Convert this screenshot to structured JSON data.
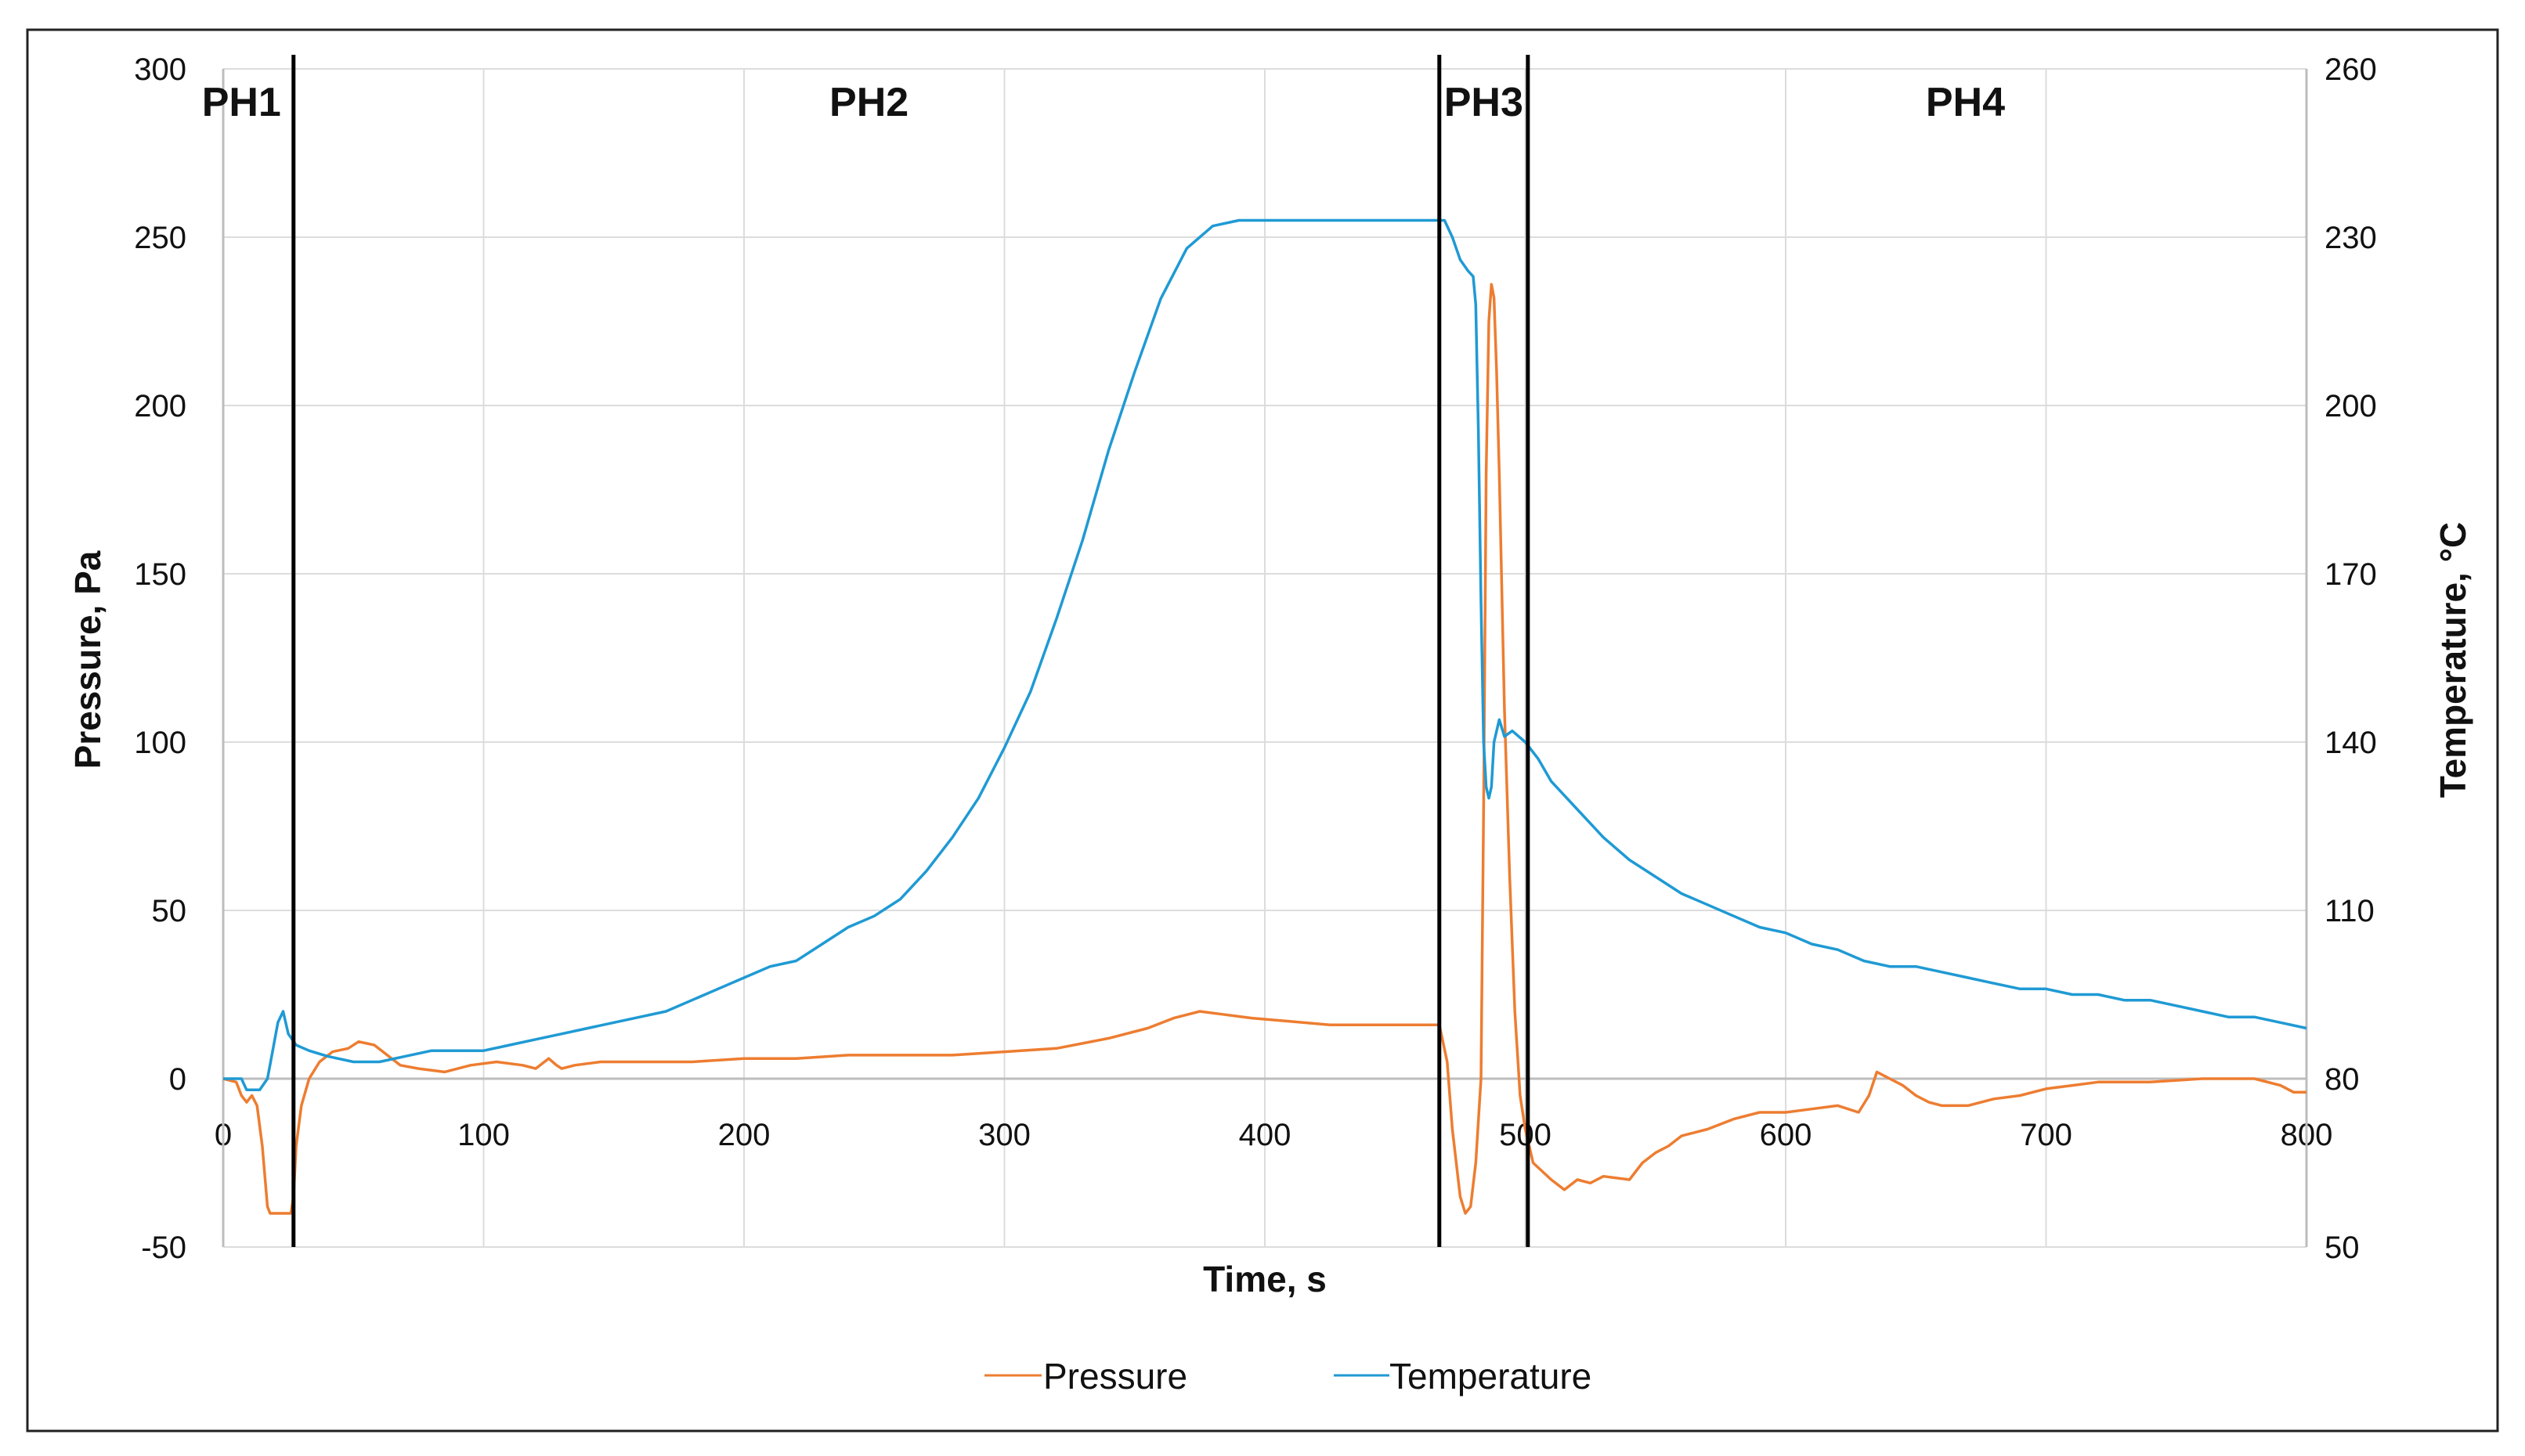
{
  "chart_data": {
    "type": "line",
    "xlabel": "Time, s",
    "ylabel": "Pressure, Pa",
    "y2label": "Temperature, °C",
    "xlim": [
      0,
      800
    ],
    "ylim": [
      -50,
      300
    ],
    "y2lim": [
      50,
      260
    ],
    "x_ticks": [
      "0",
      "100",
      "200",
      "300",
      "400",
      "500",
      "600",
      "700",
      "800"
    ],
    "y_ticks": [
      "-50",
      "0",
      "50",
      "100",
      "150",
      "200",
      "250",
      "300"
    ],
    "y2_ticks": [
      "50",
      "80",
      "110",
      "140",
      "170",
      "200",
      "230",
      "260"
    ],
    "grid": true,
    "legend_position": "bottom",
    "phase_dividers": [
      27,
      467,
      501
    ],
    "phases": [
      {
        "label": "PH1",
        "x": 7
      },
      {
        "label": "PH2",
        "x": 248
      },
      {
        "label": "PH3",
        "x": 484
      },
      {
        "label": "PH4",
        "x": 669
      }
    ],
    "series": [
      {
        "name": "Pressure",
        "axis": "left",
        "color": "#ED7D31",
        "points": [
          [
            0,
            0
          ],
          [
            5,
            -1
          ],
          [
            7,
            -5
          ],
          [
            9,
            -7
          ],
          [
            11,
            -5
          ],
          [
            13,
            -8
          ],
          [
            15,
            -20
          ],
          [
            17,
            -38
          ],
          [
            18,
            -40
          ],
          [
            22,
            -40
          ],
          [
            26,
            -40
          ],
          [
            27,
            -35
          ],
          [
            28,
            -20
          ],
          [
            30,
            -8
          ],
          [
            33,
            0
          ],
          [
            37,
            5
          ],
          [
            42,
            8
          ],
          [
            48,
            9
          ],
          [
            52,
            11
          ],
          [
            58,
            10
          ],
          [
            63,
            7
          ],
          [
            68,
            4
          ],
          [
            75,
            3
          ],
          [
            85,
            2
          ],
          [
            95,
            4
          ],
          [
            105,
            5
          ],
          [
            115,
            4
          ],
          [
            120,
            3
          ],
          [
            125,
            6
          ],
          [
            128,
            4
          ],
          [
            130,
            3
          ],
          [
            135,
            4
          ],
          [
            145,
            5
          ],
          [
            160,
            5
          ],
          [
            180,
            5
          ],
          [
            200,
            6
          ],
          [
            220,
            6
          ],
          [
            240,
            7
          ],
          [
            260,
            7
          ],
          [
            280,
            7
          ],
          [
            300,
            8
          ],
          [
            320,
            9
          ],
          [
            340,
            12
          ],
          [
            355,
            15
          ],
          [
            365,
            18
          ],
          [
            375,
            20
          ],
          [
            385,
            19
          ],
          [
            395,
            18
          ],
          [
            410,
            17
          ],
          [
            425,
            16
          ],
          [
            440,
            16
          ],
          [
            455,
            16
          ],
          [
            467,
            16
          ],
          [
            470,
            5
          ],
          [
            472,
            -15
          ],
          [
            475,
            -35
          ],
          [
            477,
            -40
          ],
          [
            479,
            -38
          ],
          [
            481,
            -25
          ],
          [
            483,
            0
          ],
          [
            484,
            80
          ],
          [
            485,
            180
          ],
          [
            486,
            225
          ],
          [
            487,
            236
          ],
          [
            488,
            232
          ],
          [
            489,
            210
          ],
          [
            490,
            180
          ],
          [
            491,
            145
          ],
          [
            492,
            110
          ],
          [
            494,
            60
          ],
          [
            496,
            20
          ],
          [
            498,
            -5
          ],
          [
            500,
            -15
          ],
          [
            503,
            -25
          ],
          [
            510,
            -30
          ],
          [
            515,
            -33
          ],
          [
            520,
            -30
          ],
          [
            525,
            -31
          ],
          [
            530,
            -29
          ],
          [
            540,
            -30
          ],
          [
            545,
            -25
          ],
          [
            550,
            -22
          ],
          [
            555,
            -20
          ],
          [
            560,
            -17
          ],
          [
            570,
            -15
          ],
          [
            580,
            -12
          ],
          [
            590,
            -10
          ],
          [
            600,
            -10
          ],
          [
            610,
            -9
          ],
          [
            620,
            -8
          ],
          [
            628,
            -10
          ],
          [
            632,
            -5
          ],
          [
            635,
            2
          ],
          [
            640,
            0
          ],
          [
            645,
            -2
          ],
          [
            650,
            -5
          ],
          [
            655,
            -7
          ],
          [
            660,
            -8
          ],
          [
            670,
            -8
          ],
          [
            680,
            -6
          ],
          [
            690,
            -5
          ],
          [
            700,
            -3
          ],
          [
            710,
            -2
          ],
          [
            720,
            -1
          ],
          [
            740,
            -1
          ],
          [
            760,
            0
          ],
          [
            780,
            0
          ],
          [
            790,
            -2
          ],
          [
            795,
            -4
          ],
          [
            800,
            -4
          ]
        ]
      },
      {
        "name": "Temperature",
        "axis": "right",
        "color": "#1F9AD4",
        "points": [
          [
            0,
            80
          ],
          [
            5,
            80
          ],
          [
            7,
            80
          ],
          [
            9,
            78
          ],
          [
            11,
            78
          ],
          [
            14,
            78
          ],
          [
            17,
            80
          ],
          [
            19,
            85
          ],
          [
            21,
            90
          ],
          [
            23,
            92
          ],
          [
            25,
            88
          ],
          [
            28,
            86
          ],
          [
            33,
            85
          ],
          [
            40,
            84
          ],
          [
            50,
            83
          ],
          [
            60,
            83
          ],
          [
            70,
            84
          ],
          [
            80,
            85
          ],
          [
            90,
            85
          ],
          [
            100,
            85
          ],
          [
            110,
            86
          ],
          [
            120,
            87
          ],
          [
            130,
            88
          ],
          [
            140,
            89
          ],
          [
            150,
            90
          ],
          [
            160,
            91
          ],
          [
            170,
            92
          ],
          [
            180,
            94
          ],
          [
            190,
            96
          ],
          [
            200,
            98
          ],
          [
            210,
            100
          ],
          [
            220,
            101
          ],
          [
            230,
            104
          ],
          [
            240,
            107
          ],
          [
            250,
            109
          ],
          [
            260,
            112
          ],
          [
            270,
            117
          ],
          [
            280,
            123
          ],
          [
            290,
            130
          ],
          [
            300,
            139
          ],
          [
            310,
            149
          ],
          [
            320,
            162
          ],
          [
            330,
            176
          ],
          [
            340,
            192
          ],
          [
            350,
            206
          ],
          [
            360,
            219
          ],
          [
            370,
            228
          ],
          [
            380,
            232
          ],
          [
            390,
            233
          ],
          [
            400,
            233
          ],
          [
            420,
            233
          ],
          [
            440,
            233
          ],
          [
            460,
            233
          ],
          [
            466,
            233
          ],
          [
            469,
            233
          ],
          [
            472,
            230
          ],
          [
            475,
            226
          ],
          [
            478,
            224
          ],
          [
            480,
            223
          ],
          [
            481,
            218
          ],
          [
            482,
            195
          ],
          [
            483,
            165
          ],
          [
            484,
            140
          ],
          [
            485,
            132
          ],
          [
            486,
            130
          ],
          [
            487,
            132
          ],
          [
            488,
            140
          ],
          [
            490,
            144
          ],
          [
            492,
            141
          ],
          [
            495,
            142
          ],
          [
            500,
            140
          ],
          [
            505,
            137
          ],
          [
            510,
            133
          ],
          [
            520,
            128
          ],
          [
            530,
            123
          ],
          [
            540,
            119
          ],
          [
            550,
            116
          ],
          [
            560,
            113
          ],
          [
            570,
            111
          ],
          [
            580,
            109
          ],
          [
            590,
            107
          ],
          [
            600,
            106
          ],
          [
            610,
            104
          ],
          [
            620,
            103
          ],
          [
            630,
            101
          ],
          [
            640,
            100
          ],
          [
            650,
            100
          ],
          [
            660,
            99
          ],
          [
            670,
            98
          ],
          [
            680,
            97
          ],
          [
            690,
            96
          ],
          [
            700,
            96
          ],
          [
            710,
            95
          ],
          [
            720,
            95
          ],
          [
            730,
            94
          ],
          [
            740,
            94
          ],
          [
            750,
            93
          ],
          [
            760,
            92
          ],
          [
            770,
            91
          ],
          [
            780,
            91
          ],
          [
            790,
            90
          ],
          [
            800,
            89
          ]
        ]
      }
    ]
  }
}
